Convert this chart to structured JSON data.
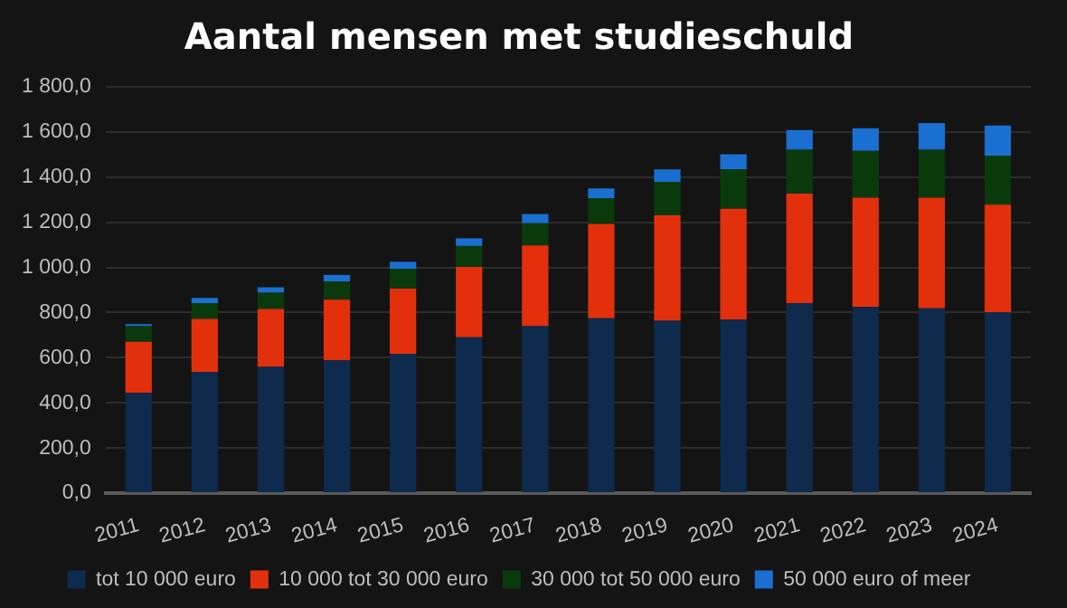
{
  "chart_data": {
    "type": "bar",
    "title": "Aantal mensen met studieschuld",
    "stacked": true,
    "grid": "y",
    "legend": "bottom",
    "categories": [
      "2011",
      "2012",
      "2013",
      "2014",
      "2015",
      "2016",
      "2017",
      "2018",
      "2019",
      "2020",
      "2021",
      "2022",
      "2023",
      "2024"
    ],
    "ylim": [
      0,
      1800
    ],
    "yticks": [
      {
        "value": 0,
        "label": "0,0"
      },
      {
        "value": 200,
        "label": "200,0"
      },
      {
        "value": 400,
        "label": "400,0"
      },
      {
        "value": 600,
        "label": "600,0"
      },
      {
        "value": 800,
        "label": "800,0"
      },
      {
        "value": 1000,
        "label": "1 000,0"
      },
      {
        "value": 1200,
        "label": "1 200,0"
      },
      {
        "value": 1400,
        "label": "1 400,0"
      },
      {
        "value": 1600,
        "label": "1 600,0"
      },
      {
        "value": 1800,
        "label": "1 800,0"
      }
    ],
    "series": [
      {
        "name": "tot 10 000 euro",
        "color": "#0e2a4c",
        "values": [
          444,
          537,
          560,
          589,
          618,
          691,
          740,
          775,
          764,
          769,
          842,
          825,
          819,
          801
        ]
      },
      {
        "name": "10 000 tot 30 000 euro",
        "color": "#e3300c",
        "values": [
          227,
          235,
          256,
          268,
          288,
          311,
          358,
          418,
          467,
          491,
          485,
          484,
          490,
          477
        ]
      },
      {
        "name": "30 000 tot 50 000 euro",
        "color": "#0a3a0c",
        "values": [
          69,
          70,
          72,
          81,
          87,
          93,
          98,
          114,
          148,
          174,
          194,
          207,
          212,
          217
        ]
      },
      {
        "name": "50 000 euro of meer",
        "color": "#1a6fd0",
        "values": [
          9,
          23,
          24,
          29,
          32,
          34,
          41,
          43,
          55,
          67,
          88,
          101,
          119,
          134
        ]
      }
    ]
  }
}
